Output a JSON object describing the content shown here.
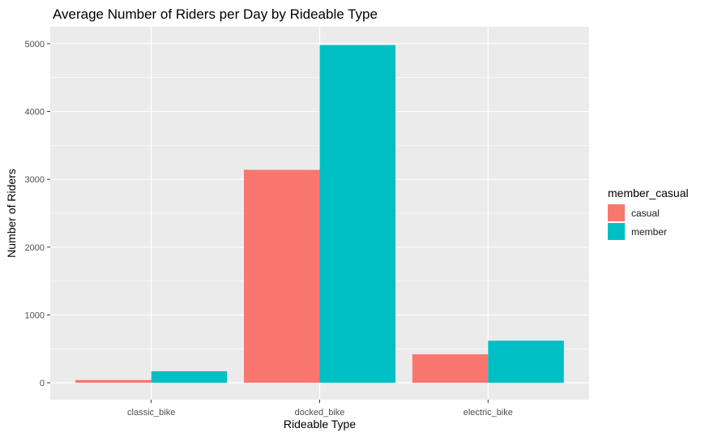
{
  "chart_data": {
    "type": "bar",
    "title": "Average Number of Riders per Day by Rideable Type",
    "xlabel": "Rideable Type",
    "ylabel": "Number of Riders",
    "categories": [
      "classic_bike",
      "docked_bike",
      "electric_bike"
    ],
    "series": [
      {
        "name": "casual",
        "color": "#F8766D",
        "values": [
          40,
          3140,
          420
        ]
      },
      {
        "name": "member",
        "color": "#00BFC4",
        "values": [
          170,
          4980,
          620
        ]
      }
    ],
    "ylim": [
      -250,
      5250
    ],
    "yticks": [
      0,
      1000,
      2000,
      3000,
      4000,
      5000
    ],
    "legend": {
      "title": "member_casual",
      "position": "right"
    },
    "grid": true,
    "panel_background": "#EBEBEB"
  }
}
